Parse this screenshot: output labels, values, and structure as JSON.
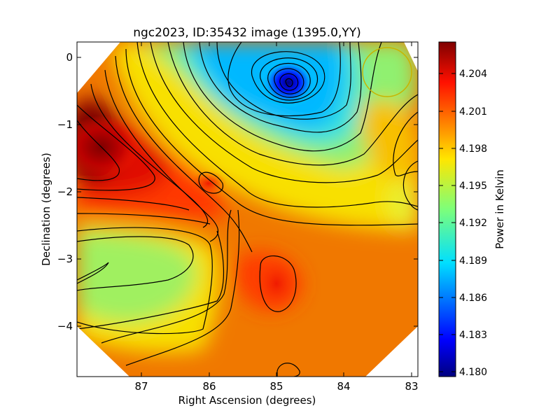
{
  "chart_data": {
    "type": "heatmap",
    "title": "ngc2023, ID:35432 image (1395.0,YY)",
    "xlabel": "Right Ascension (degrees)",
    "ylabel": "Declination (degrees)",
    "colorbar_label": "Power in Kelvin",
    "x_ticks": [
      "87",
      "86",
      "85",
      "84",
      "83"
    ],
    "y_ticks": [
      "0",
      "−1",
      "−2",
      "−3",
      "−4"
    ],
    "colorbar_ticks": [
      "4.204",
      "4.201",
      "4.198",
      "4.195",
      "4.192",
      "4.189",
      "4.186",
      "4.183",
      "4.180"
    ],
    "x_range": [
      87.95,
      82.95
    ],
    "y_range": [
      -4.75,
      0.25
    ],
    "color_range": [
      4.1795,
      4.2066
    ],
    "colormap": "jet",
    "contours": "black lines",
    "beam_marker": {
      "shape": "circle",
      "color": "#c8b400"
    },
    "features": [
      {
        "name": "minimum",
        "ra": 84.8,
        "dec": -0.42,
        "value": 4.18
      },
      {
        "name": "maximum",
        "ra": 87.7,
        "dec": -1.6,
        "value": 4.206
      },
      {
        "name": "local-high",
        "ra": 86.0,
        "dec": -1.9,
        "value": 4.203
      },
      {
        "name": "local-high",
        "ra": 84.9,
        "dec": -3.35,
        "value": 4.2025
      }
    ]
  }
}
